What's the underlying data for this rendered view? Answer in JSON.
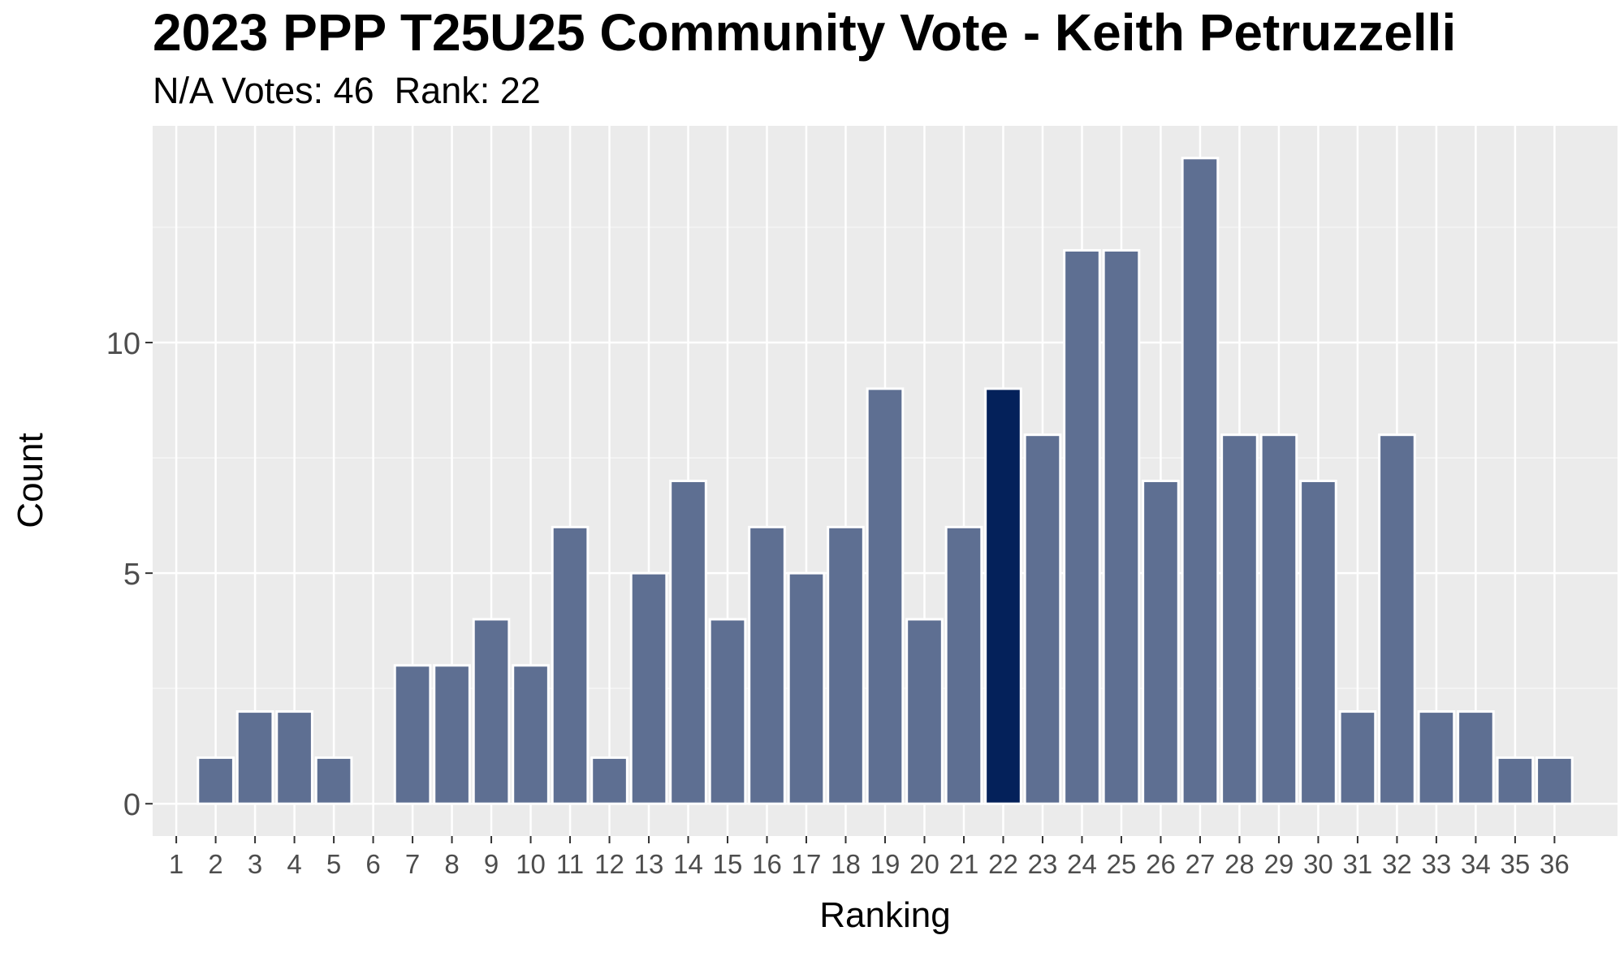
{
  "chart_data": {
    "type": "bar",
    "title": "2023 PPP T25U25 Community Vote - Keith Petruzzelli",
    "subtitle": "N/A Votes: 46  Rank: 22",
    "xlabel": "Ranking",
    "ylabel": "Count",
    "categories": [
      "1",
      "2",
      "3",
      "4",
      "5",
      "6",
      "7",
      "8",
      "9",
      "10",
      "11",
      "12",
      "13",
      "14",
      "15",
      "16",
      "17",
      "18",
      "19",
      "20",
      "21",
      "22",
      "23",
      "24",
      "25",
      "26",
      "27",
      "28",
      "29",
      "30",
      "31",
      "32",
      "33",
      "34",
      "35",
      "36"
    ],
    "values": [
      0,
      1,
      2,
      2,
      1,
      0,
      3,
      3,
      4,
      3,
      6,
      1,
      5,
      7,
      4,
      6,
      5,
      6,
      9,
      4,
      6,
      9,
      8,
      12,
      12,
      7,
      14,
      8,
      8,
      7,
      2,
      8,
      2,
      2,
      1,
      1
    ],
    "highlight_category": "22",
    "yticks": [
      0,
      5,
      10
    ],
    "ylim": [
      -0.7,
      14.7
    ],
    "grid": true,
    "colors": {
      "bar": "#5e6f92",
      "highlight": "#04215a",
      "panel": "#ebebeb",
      "grid_major": "#ffffff",
      "grid_minor": "#f5f5f5",
      "bar_outline": "#ffffff",
      "tick_text": "#4d4d4d",
      "title_text": "#000000"
    }
  }
}
